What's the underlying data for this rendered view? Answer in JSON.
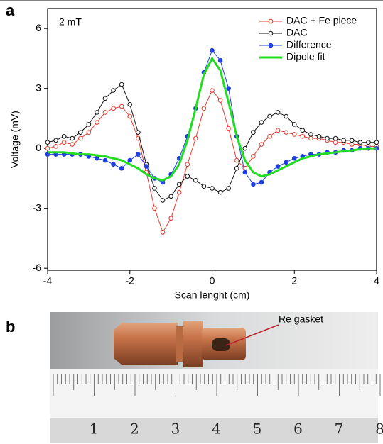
{
  "panel_labels": [
    "a",
    "b"
  ],
  "chart_data": {
    "type": "line",
    "annotation": "2 mT",
    "x_label": "Scan lenght (cm)",
    "y_label": "Voltage (mV)",
    "x": [
      -4,
      -3.8,
      -3.6,
      -3.4,
      -3.2,
      -3,
      -2.8,
      -2.6,
      -2.4,
      -2.2,
      -2,
      -1.8,
      -1.6,
      -1.4,
      -1.2,
      -1,
      -0.8,
      -0.6,
      -0.4,
      -0.2,
      0,
      0.2,
      0.4,
      0.6,
      0.8,
      1,
      1.2,
      1.4,
      1.6,
      1.8,
      2,
      2.2,
      2.4,
      2.6,
      2.8,
      3,
      3.2,
      3.4,
      3.6,
      3.8,
      4
    ],
    "series": [
      {
        "name": "DAC + Fe piece",
        "color": "#e8392f",
        "marker": "open",
        "values": [
          0,
          0.1,
          0.3,
          0.2,
          0.5,
          0.8,
          1.3,
          1.8,
          2,
          2.1,
          1.6,
          0.5,
          -1.2,
          -3,
          -4.2,
          -3.5,
          -2.2,
          -0.8,
          0.5,
          2,
          2.9,
          2.4,
          1,
          -0.6,
          -1,
          -0.4,
          0.2,
          0.6,
          0.9,
          0.8,
          0.7,
          0.6,
          0.5,
          0.5,
          0.4,
          0.3,
          0.3,
          0.2,
          0.2,
          0.1,
          0.1
        ]
      },
      {
        "name": "DAC",
        "color": "#111111",
        "marker": "open",
        "values": [
          0.3,
          0.4,
          0.6,
          0.5,
          0.8,
          1.2,
          1.8,
          2.5,
          2.9,
          3.2,
          2.2,
          0.8,
          -0.8,
          -2,
          -2.6,
          -2.4,
          -1.8,
          -1.4,
          -1.6,
          -1.9,
          -2,
          -2.2,
          -2,
          -1,
          0,
          0.8,
          1.3,
          1.6,
          1.8,
          1.6,
          1.2,
          0.9,
          0.7,
          0.6,
          0.5,
          0.5,
          0.4,
          0.4,
          0.3,
          0.3,
          0.3
        ]
      },
      {
        "name": "Difference",
        "color": "#1f3fe0",
        "marker": "filled",
        "values": [
          -0.3,
          -0.3,
          -0.3,
          -0.3,
          -0.3,
          -0.4,
          -0.5,
          -0.6,
          -0.8,
          -1,
          -0.6,
          -0.3,
          -0.9,
          -1.5,
          -1.7,
          -1.3,
          -0.5,
          0.6,
          2,
          3.8,
          4.9,
          4.4,
          3,
          0.6,
          -1.2,
          -1.8,
          -1.7,
          -1.2,
          -0.9,
          -0.7,
          -0.5,
          -0.4,
          -0.3,
          -0.3,
          -0.2,
          -0.2,
          -0.1,
          -0.1,
          0,
          0,
          0
        ]
      },
      {
        "name": "Dipole fit",
        "color": "#22dd22",
        "marker": "none",
        "values": [
          -0.2,
          -0.2,
          -0.2,
          -0.25,
          -0.3,
          -0.3,
          -0.35,
          -0.4,
          -0.5,
          -0.6,
          -0.8,
          -1,
          -1.3,
          -1.5,
          -1.6,
          -1.4,
          -0.8,
          0.4,
          2,
          3.7,
          4.5,
          3.9,
          2.3,
          0.6,
          -0.6,
          -1.2,
          -1.4,
          -1.3,
          -1.1,
          -0.9,
          -0.7,
          -0.5,
          -0.4,
          -0.3,
          -0.25,
          -0.2,
          -0.15,
          -0.1,
          -0.05,
          0,
          0
        ]
      }
    ],
    "xlim": [
      -4,
      4
    ],
    "ylim": [
      -6.1,
      7
    ],
    "xticks": [
      -4,
      -2,
      0,
      2,
      4
    ],
    "yticks": [
      -6,
      -3,
      0,
      3,
      6
    ],
    "legend": "top-right"
  },
  "photo": {
    "annotation": "Re gasket",
    "ruler_labels": [
      "1",
      "2",
      "3",
      "4",
      "5",
      "6",
      "7",
      "8"
    ]
  }
}
